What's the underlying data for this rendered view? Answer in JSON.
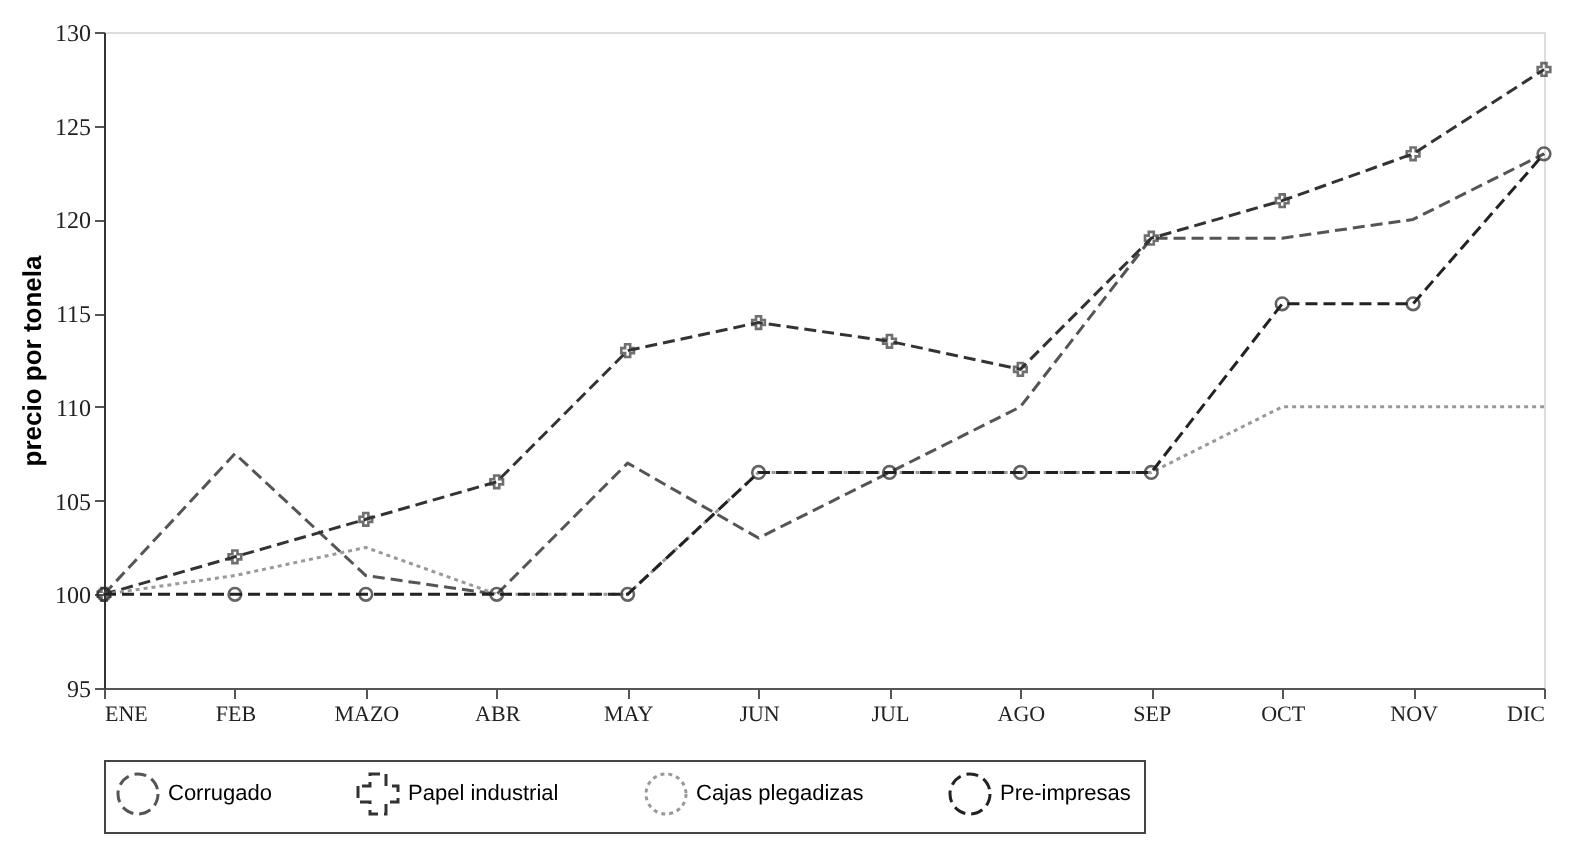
{
  "chart_data": {
    "type": "line",
    "ylabel": "precio por tonela",
    "categories": [
      "ENE",
      "FEB",
      "MAZO",
      "ABR",
      "MAY",
      "JUN",
      "JUL",
      "AGO",
      "SEP",
      "OCT",
      "NOV",
      "DIC"
    ],
    "series": [
      {
        "name": "Corrugado",
        "color": "#555555",
        "line_style": "dashed",
        "marker": "none",
        "values": [
          100,
          107.5,
          101,
          100,
          107,
          103,
          106.5,
          110,
          119,
          119,
          120,
          123.5
        ]
      },
      {
        "name": "Papel industrial",
        "color": "#333333",
        "line_style": "dashed",
        "marker": "cross",
        "values": [
          100,
          102,
          104,
          106,
          113,
          114.5,
          113.5,
          112,
          119,
          121,
          123.5,
          128
        ]
      },
      {
        "name": "Cajas plegadizas",
        "color": "#999999",
        "line_style": "dotted",
        "marker": "none",
        "values": [
          100,
          101,
          102.5,
          100,
          100,
          106.5,
          106.5,
          106.5,
          106.5,
          110,
          110,
          110
        ]
      },
      {
        "name": "Pre-impresas",
        "color": "#222222",
        "line_style": "dashed",
        "marker": "circle",
        "values": [
          100,
          100,
          100,
          100,
          100,
          106.5,
          106.5,
          106.5,
          106.5,
          115.5,
          115.5,
          123.5
        ]
      }
    ],
    "ylim": [
      95,
      130
    ],
    "yticks": [
      95,
      100,
      105,
      110,
      115,
      120,
      125,
      130
    ],
    "grid": false,
    "legend": "bottom"
  }
}
